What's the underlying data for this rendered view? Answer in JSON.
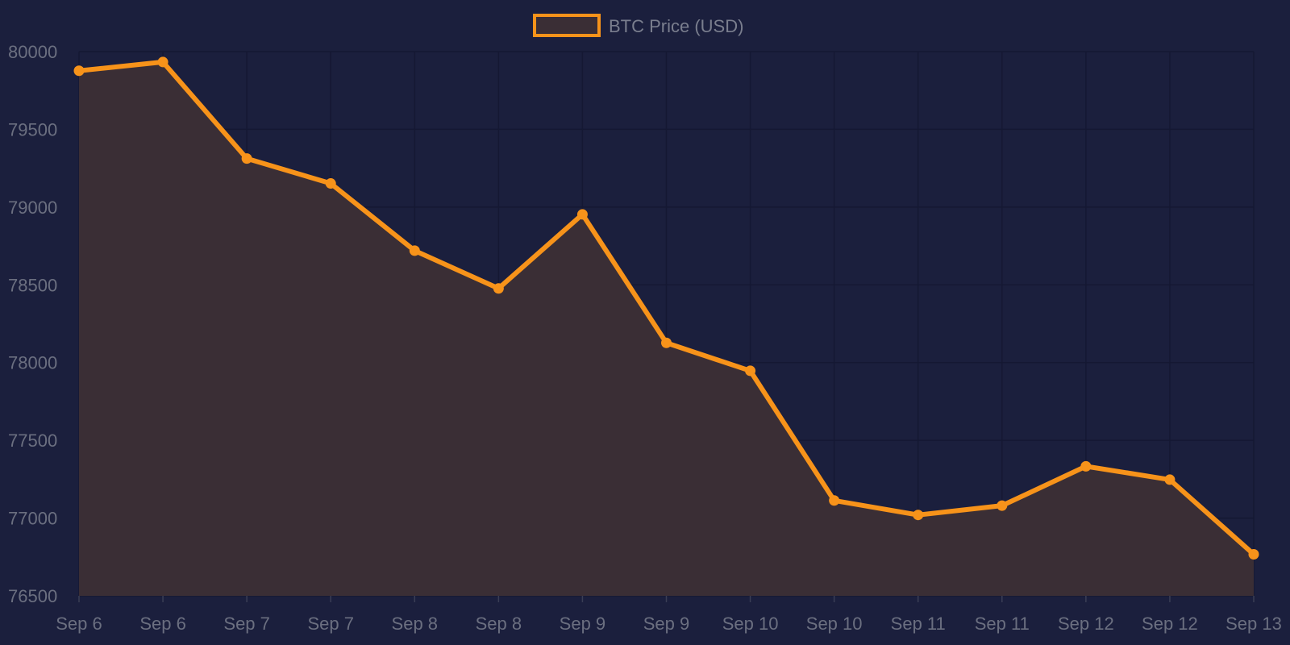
{
  "chart_data": {
    "type": "area",
    "categories": [
      "Sep 6",
      "Sep 6",
      "Sep 7",
      "Sep 7",
      "Sep 8",
      "Sep 8",
      "Sep 9",
      "Sep 9",
      "Sep 10",
      "Sep 10",
      "Sep 11",
      "Sep 11",
      "Sep 12",
      "Sep 12",
      "Sep 13"
    ],
    "series": [
      {
        "name": "BTC Price (USD)",
        "values": [
          79877,
          79933,
          79312,
          79152,
          78720,
          78477,
          78953,
          78127,
          77947,
          77113,
          77020,
          77080,
          77333,
          77247,
          76767
        ],
        "color": "#f7931a",
        "fill": "#3a2e35"
      }
    ],
    "ylim": [
      76500,
      80000
    ],
    "yticks": [
      76500,
      77000,
      77500,
      78000,
      78500,
      79000,
      79500,
      80000
    ],
    "grid": true,
    "legend": "top-center",
    "title": "",
    "xlabel": "",
    "ylabel": ""
  },
  "colors": {
    "background": "#1b1f3d",
    "grid": "#151833",
    "tick_text": "#6b6f80"
  }
}
